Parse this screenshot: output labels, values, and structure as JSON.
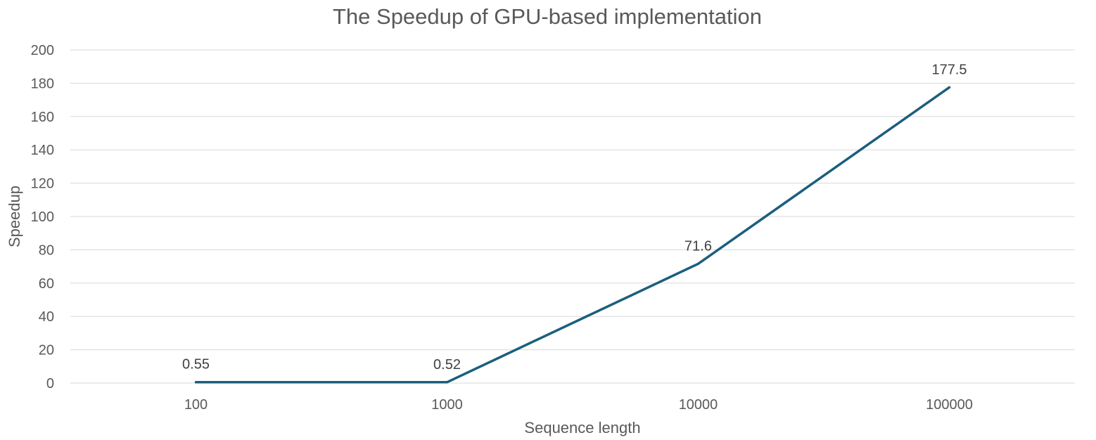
{
  "chart_data": {
    "type": "line",
    "title": "The Speedup of GPU-based implementation",
    "xlabel": "Sequence length",
    "ylabel": "Speedup",
    "categories": [
      "100",
      "1000",
      "10000",
      "100000"
    ],
    "series": [
      {
        "values": [
          0.55,
          0.52,
          71.6,
          177.5
        ]
      }
    ],
    "data_labels": [
      "0.55",
      "0.52",
      "71.6",
      "177.5"
    ],
    "ylim": [
      0,
      200
    ],
    "yticks": [
      0,
      20,
      40,
      60,
      80,
      100,
      120,
      140,
      160,
      180,
      200
    ],
    "grid": true,
    "legend": "none",
    "colors": {
      "series": "#1b5e7e",
      "grid": "#d9d9d9",
      "text": "#595959"
    }
  }
}
